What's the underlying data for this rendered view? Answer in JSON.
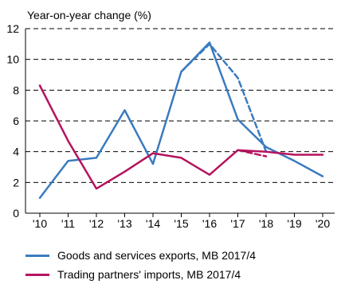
{
  "chart_data": {
    "type": "line",
    "ylabel": "Year-on-year change (%)",
    "ylim": [
      0,
      12
    ],
    "yticks": [
      0,
      2,
      4,
      6,
      8,
      10,
      12
    ],
    "categories": [
      "'10",
      "'11",
      "'12",
      "'13",
      "'14",
      "'15",
      "'16",
      "'17",
      "'18",
      "'19",
      "'20"
    ],
    "grid": "horizontal dashed",
    "legend_position": "bottom",
    "series": [
      {
        "name": "Goods and services exports, MB 2017/4",
        "color": "#3a7bbf",
        "style": "solid",
        "values": [
          1.0,
          3.4,
          3.6,
          6.7,
          3.2,
          9.2,
          11.1,
          6.1,
          4.3,
          3.4,
          2.4
        ]
      },
      {
        "name": "Trading partners' imports, MB 2017/4",
        "color": "#b5135e",
        "style": "solid",
        "values": [
          8.3,
          4.7,
          1.6,
          2.7,
          3.9,
          3.6,
          2.5,
          4.1,
          4.0,
          3.8,
          3.8
        ]
      },
      {
        "name": "",
        "color": "#3a7bbf",
        "style": "dashed",
        "values": [
          null,
          null,
          null,
          null,
          null,
          9.2,
          11.0,
          8.8,
          4.0,
          null,
          null
        ]
      },
      {
        "name": "",
        "color": "#b5135e",
        "style": "dashed",
        "values": [
          null,
          null,
          null,
          null,
          null,
          null,
          null,
          4.1,
          3.7,
          null,
          null
        ]
      }
    ]
  }
}
